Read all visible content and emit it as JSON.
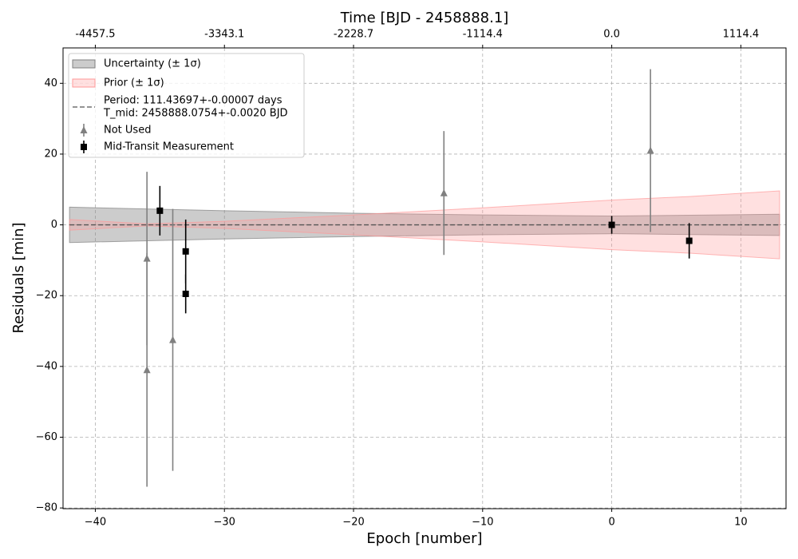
{
  "chart_data": {
    "type": "errorbar",
    "x2label": "Time [BJD - 2458888.1]",
    "xlabel": "Epoch [number]",
    "ylabel": "Residuals [min]",
    "xlim": [
      -42.5,
      13.5
    ],
    "ylim": [
      -80.2,
      50
    ],
    "x2lim": [
      -4736.1,
      1504.4
    ],
    "xticks": [
      {
        "value": -40,
        "label": "−40"
      },
      {
        "value": -30,
        "label": "−30"
      },
      {
        "value": -20,
        "label": "−20"
      },
      {
        "value": -10,
        "label": "−10"
      },
      0,
      10
    ],
    "yticks": [
      {
        "value": -80,
        "label": "−80"
      },
      {
        "value": -60,
        "label": "−60"
      },
      {
        "value": -40,
        "label": "−40"
      },
      {
        "value": -20,
        "label": "−20"
      },
      0,
      20,
      40
    ],
    "x2ticks": [
      -4457.5,
      -3343.1,
      -2228.7,
      -1114.4,
      {
        "value": 0,
        "label": "0.0"
      },
      1114.4
    ],
    "grid": true,
    "legend": "upper left",
    "bands": [
      {
        "name": "Uncertainty (± 1σ)",
        "color": "#808080",
        "alpha": 0.4,
        "x": [
          -42,
          -30,
          -20,
          -10,
          0,
          13
        ],
        "upper": [
          5,
          4,
          3.3,
          2.8,
          2.5,
          3
        ],
        "lower": [
          -5,
          -4,
          -3.3,
          -2.8,
          -2.5,
          -3
        ]
      },
      {
        "name": "Prior (± 1σ)",
        "color": "#ff9999",
        "alpha": 0.3,
        "x": [
          -42,
          -36,
          -30,
          -20,
          -10,
          0,
          6,
          13
        ],
        "upper": [
          1.5,
          0.3,
          1,
          2.8,
          4.8,
          7,
          8,
          9.6
        ],
        "lower": [
          -1.5,
          -0.3,
          -1,
          -2.8,
          -4.8,
          -7,
          -8,
          -9.6
        ]
      }
    ],
    "reference_line": {
      "name": [
        "Period: 111.43697+-0.00007 days",
        "T_mid: 2458888.0754+-0.0020 BJD"
      ],
      "color": "#555555",
      "x": [
        -42,
        13
      ],
      "y": 0
    },
    "series": [
      {
        "name": "Not Used",
        "color": "#808080",
        "marker": "triangle",
        "x": [
          -36,
          -36,
          -34,
          -13,
          3
        ],
        "values": [
          -9.5,
          -41,
          -32.5,
          9,
          21
        ],
        "errors": [
          24.5,
          33,
          37,
          17.5,
          23
        ]
      },
      {
        "name": "Mid-Transit Measurement",
        "color": "#000000",
        "marker": "square",
        "x": [
          -35,
          -33,
          -33,
          0,
          6
        ],
        "values": [
          4,
          -7.5,
          -19.5,
          0,
          -4.5
        ],
        "errors": [
          7,
          9,
          5.5,
          2.5,
          5
        ]
      }
    ]
  }
}
